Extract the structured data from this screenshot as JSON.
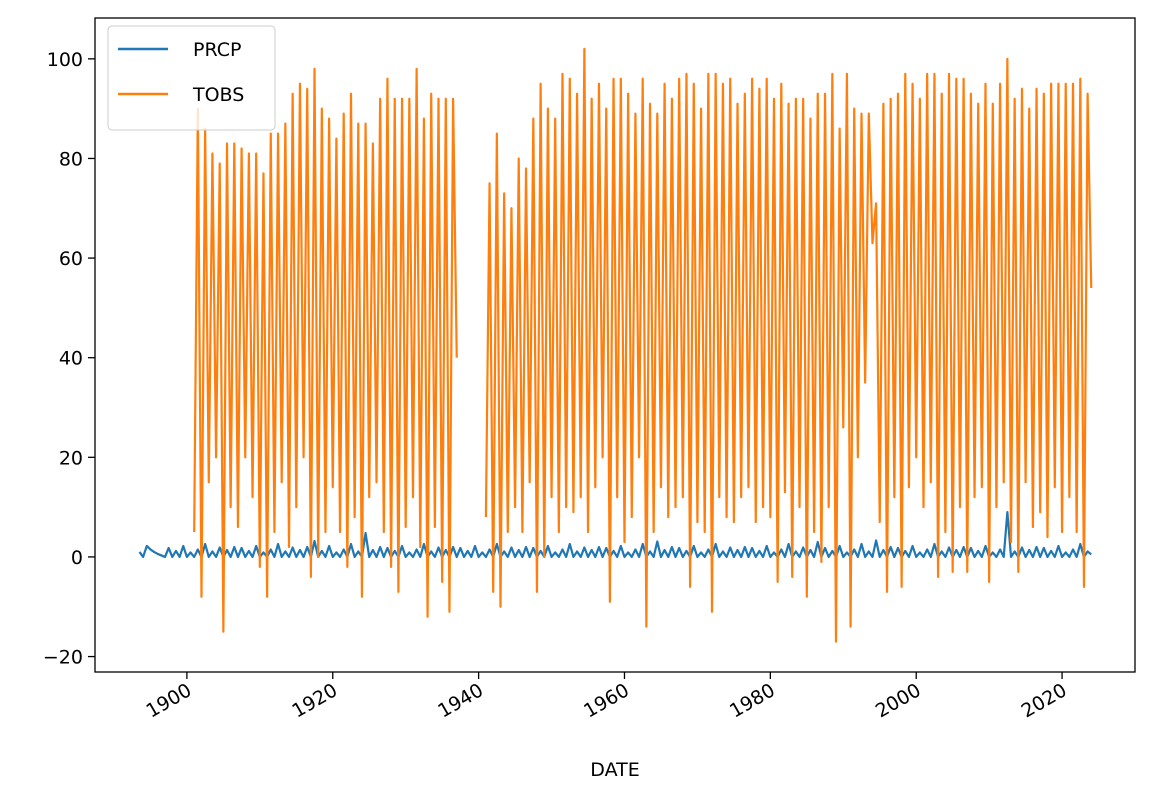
{
  "chart_data": {
    "type": "line",
    "xlabel": "DATE",
    "legend": "upper left",
    "grid": false,
    "xlim": [
      1887.4,
      2030.0
    ],
    "xticks": [
      1900,
      1920,
      1940,
      1960,
      1980,
      2000,
      2020
    ],
    "ylim": [
      -23.1,
      108.2
    ],
    "yticks": [
      {
        "value": -20,
        "label": "−20"
      },
      0,
      20,
      40,
      60,
      80,
      100
    ],
    "x": [
      1893.5,
      1894,
      1894.5,
      1895,
      1895.5,
      1896,
      1896.5,
      1897,
      1897.5,
      1898,
      1898.5,
      1899,
      1899.5,
      1900,
      1900.5,
      1901,
      1901.5,
      1902,
      1902.5,
      1903,
      1903.5,
      1904,
      1904.5,
      1905,
      1905.5,
      1906,
      1906.5,
      1907,
      1907.5,
      1908,
      1908.5,
      1909,
      1909.5,
      1910,
      1910.5,
      1911,
      1911.5,
      1912,
      1912.5,
      1913,
      1913.5,
      1914,
      1914.5,
      1915,
      1915.5,
      1916,
      1916.5,
      1917,
      1917.5,
      1918,
      1918.5,
      1919,
      1919.5,
      1920,
      1920.5,
      1921,
      1921.5,
      1922,
      1922.5,
      1923,
      1923.5,
      1924,
      1924.5,
      1925,
      1925.5,
      1926,
      1926.5,
      1927,
      1927.5,
      1928,
      1928.5,
      1929,
      1929.5,
      1930,
      1930.5,
      1931,
      1931.5,
      1932,
      1932.5,
      1933,
      1933.5,
      1934,
      1934.5,
      1935,
      1935.5,
      1936,
      1936.5,
      1937,
      1937.5,
      1938,
      1938.5,
      1939,
      1939.5,
      1940,
      1940.5,
      1941,
      1941.5,
      1942,
      1942.5,
      1943,
      1943.5,
      1944,
      1944.5,
      1945,
      1945.5,
      1946,
      1946.5,
      1947,
      1947.5,
      1948,
      1948.5,
      1949,
      1949.5,
      1950,
      1950.5,
      1951,
      1951.5,
      1952,
      1952.5,
      1953,
      1953.5,
      1954,
      1954.5,
      1955,
      1955.5,
      1956,
      1956.5,
      1957,
      1957.5,
      1958,
      1958.5,
      1959,
      1959.5,
      1960,
      1960.5,
      1961,
      1961.5,
      1962,
      1962.5,
      1963,
      1963.5,
      1964,
      1964.5,
      1965,
      1965.5,
      1966,
      1966.5,
      1967,
      1967.5,
      1968,
      1968.5,
      1969,
      1969.5,
      1970,
      1970.5,
      1971,
      1971.5,
      1972,
      1972.5,
      1973,
      1973.5,
      1974,
      1974.5,
      1975,
      1975.5,
      1976,
      1976.5,
      1977,
      1977.5,
      1978,
      1978.5,
      1979,
      1979.5,
      1980,
      1980.5,
      1981,
      1981.5,
      1982,
      1982.5,
      1983,
      1983.5,
      1984,
      1984.5,
      1985,
      1985.5,
      1986,
      1986.5,
      1987,
      1987.5,
      1988,
      1988.5,
      1989,
      1989.5,
      1990,
      1990.5,
      1991,
      1991.5,
      1992,
      1992.5,
      1993,
      1993.5,
      1994,
      1994.5,
      1995,
      1995.5,
      1996,
      1996.5,
      1997,
      1997.5,
      1998,
      1998.5,
      1999,
      1999.5,
      2000,
      2000.5,
      2001,
      2001.5,
      2002,
      2002.5,
      2003,
      2003.5,
      2004,
      2004.5,
      2005,
      2005.5,
      2006,
      2006.5,
      2007,
      2007.5,
      2008,
      2008.5,
      2009,
      2009.5,
      2010,
      2010.5,
      2011,
      2011.5,
      2012,
      2012.5,
      2013,
      2013.5,
      2014,
      2014.5,
      2015,
      2015.5,
      2016,
      2016.5,
      2017,
      2017.5,
      2018,
      2018.5,
      2019,
      2019.5,
      2020,
      2020.5,
      2021,
      2021.5,
      2022,
      2022.5,
      2023,
      2023.5,
      2024
    ],
    "series": [
      {
        "name": "PRCP",
        "color": "#1f77b4",
        "values": [
          1.0,
          0,
          2.2,
          1.5,
          1.0,
          0.6,
          0.3,
          0,
          1.8,
          0,
          1.2,
          0,
          2.2,
          0,
          0.9,
          0,
          1.5,
          0,
          2.6,
          0,
          1.1,
          0,
          1.9,
          0,
          1.4,
          0,
          2.0,
          0,
          1.8,
          0,
          1.2,
          0,
          2.2,
          0,
          0.9,
          0,
          1.5,
          0,
          2.6,
          0,
          1.1,
          0,
          1.9,
          0,
          1.4,
          0,
          2.0,
          0,
          3.2,
          0,
          1.2,
          0,
          2.2,
          0,
          0.9,
          0,
          1.5,
          0,
          2.6,
          0,
          1.1,
          0,
          4.8,
          0,
          1.4,
          0,
          2.0,
          0,
          1.8,
          0,
          1.2,
          0,
          2.2,
          0,
          0.9,
          0,
          1.5,
          0,
          2.6,
          0,
          1.1,
          0,
          1.9,
          0,
          1.4,
          0,
          2.0,
          0,
          1.8,
          0,
          1.2,
          0,
          2.2,
          0,
          0.9,
          0,
          1.5,
          0,
          2.6,
          0,
          1.1,
          0,
          1.9,
          0,
          1.4,
          0,
          2.0,
          0,
          1.8,
          0,
          1.2,
          0,
          2.2,
          0,
          0.9,
          0,
          1.5,
          0,
          2.6,
          0,
          1.1,
          0,
          1.9,
          0,
          1.4,
          0,
          2.0,
          0,
          1.8,
          0,
          1.2,
          0,
          2.2,
          0,
          0.9,
          0,
          1.5,
          0,
          2.6,
          0,
          1.1,
          0,
          3.1,
          0,
          1.4,
          0,
          2.0,
          0,
          1.8,
          0,
          1.2,
          0,
          2.2,
          0,
          0.9,
          0,
          1.5,
          0,
          2.6,
          0,
          1.1,
          0,
          1.9,
          0,
          1.4,
          0,
          2.0,
          0,
          1.8,
          0,
          1.2,
          0,
          2.2,
          0,
          0.9,
          0,
          1.5,
          0,
          2.6,
          0,
          1.1,
          0,
          1.9,
          0,
          1.4,
          0,
          3.0,
          0,
          1.8,
          0,
          1.2,
          0,
          2.2,
          0,
          0.9,
          0,
          1.5,
          0,
          2.6,
          0,
          1.1,
          0,
          3.3,
          0,
          1.4,
          0,
          2.0,
          0,
          1.8,
          0,
          1.2,
          0,
          2.2,
          0,
          0.9,
          0,
          1.5,
          0,
          2.6,
          0,
          1.1,
          0,
          1.9,
          0,
          1.4,
          0,
          2.0,
          0,
          1.8,
          0,
          1.2,
          0,
          2.2,
          0,
          0.9,
          0,
          1.5,
          0,
          9.0,
          0,
          1.1,
          0,
          1.9,
          0,
          1.4,
          0,
          2.0,
          0,
          1.8,
          0,
          1.2,
          0,
          2.2,
          0,
          0.9,
          0,
          1.5,
          0,
          2.6,
          0,
          1.1,
          0.5
        ]
      },
      {
        "name": "TOBS",
        "color": "#ff7f0e",
        "values": [
          null,
          null,
          null,
          null,
          null,
          null,
          null,
          null,
          null,
          null,
          null,
          null,
          null,
          null,
          null,
          5,
          90,
          -8,
          86,
          15,
          81,
          20,
          79,
          -15,
          83,
          10,
          83,
          6,
          82,
          20,
          81,
          12,
          81,
          -2,
          77,
          -8,
          85,
          5,
          85,
          15,
          87,
          2,
          93,
          10,
          95,
          20,
          94,
          -4,
          98,
          0,
          90,
          5,
          88,
          14,
          84,
          5,
          89,
          -2,
          93,
          8,
          87,
          -8,
          87,
          12,
          83,
          15,
          92,
          5,
          96,
          -2,
          92,
          -7,
          92,
          6,
          92,
          12,
          98,
          2,
          88,
          -12,
          93,
          6,
          92,
          -5,
          92,
          -11,
          92,
          40,
          null,
          null,
          null,
          null,
          null,
          null,
          null,
          8,
          75,
          -7,
          85,
          -10,
          73,
          5,
          70,
          10,
          80,
          5,
          78,
          15,
          88,
          -7,
          95,
          0,
          90,
          12,
          88,
          5,
          97,
          10,
          96,
          9,
          93,
          12,
          102,
          5,
          92,
          14,
          95,
          20,
          90,
          -9,
          96,
          12,
          96,
          3,
          93,
          8,
          89,
          20,
          96,
          -14,
          91,
          5,
          89,
          14,
          95,
          8,
          92,
          10,
          96,
          12,
          97,
          -6,
          95,
          7,
          90,
          5,
          97,
          -11,
          97,
          12,
          95,
          8,
          96,
          7,
          91,
          12,
          93,
          14,
          96,
          7,
          94,
          10,
          96,
          8,
          92,
          -5,
          95,
          13,
          91,
          -4,
          92,
          10,
          92,
          -8,
          88,
          5,
          93,
          -1,
          93,
          10,
          97,
          -17,
          86,
          26,
          97,
          -14,
          90,
          20,
          89,
          35,
          89,
          63,
          71,
          7,
          91,
          -7,
          92,
          12,
          93,
          -6,
          97,
          14,
          95,
          20,
          92,
          10,
          97,
          15,
          97,
          -4,
          93,
          5,
          97,
          -3,
          96,
          10,
          96,
          -3,
          93,
          12,
          91,
          14,
          95,
          -5,
          91,
          10,
          95,
          15,
          100,
          3,
          92,
          -3,
          94,
          15,
          90,
          6,
          94,
          9,
          93,
          4,
          95,
          14,
          95,
          5,
          95,
          12,
          95,
          5,
          96,
          -6,
          93,
          54
        ]
      }
    ]
  }
}
